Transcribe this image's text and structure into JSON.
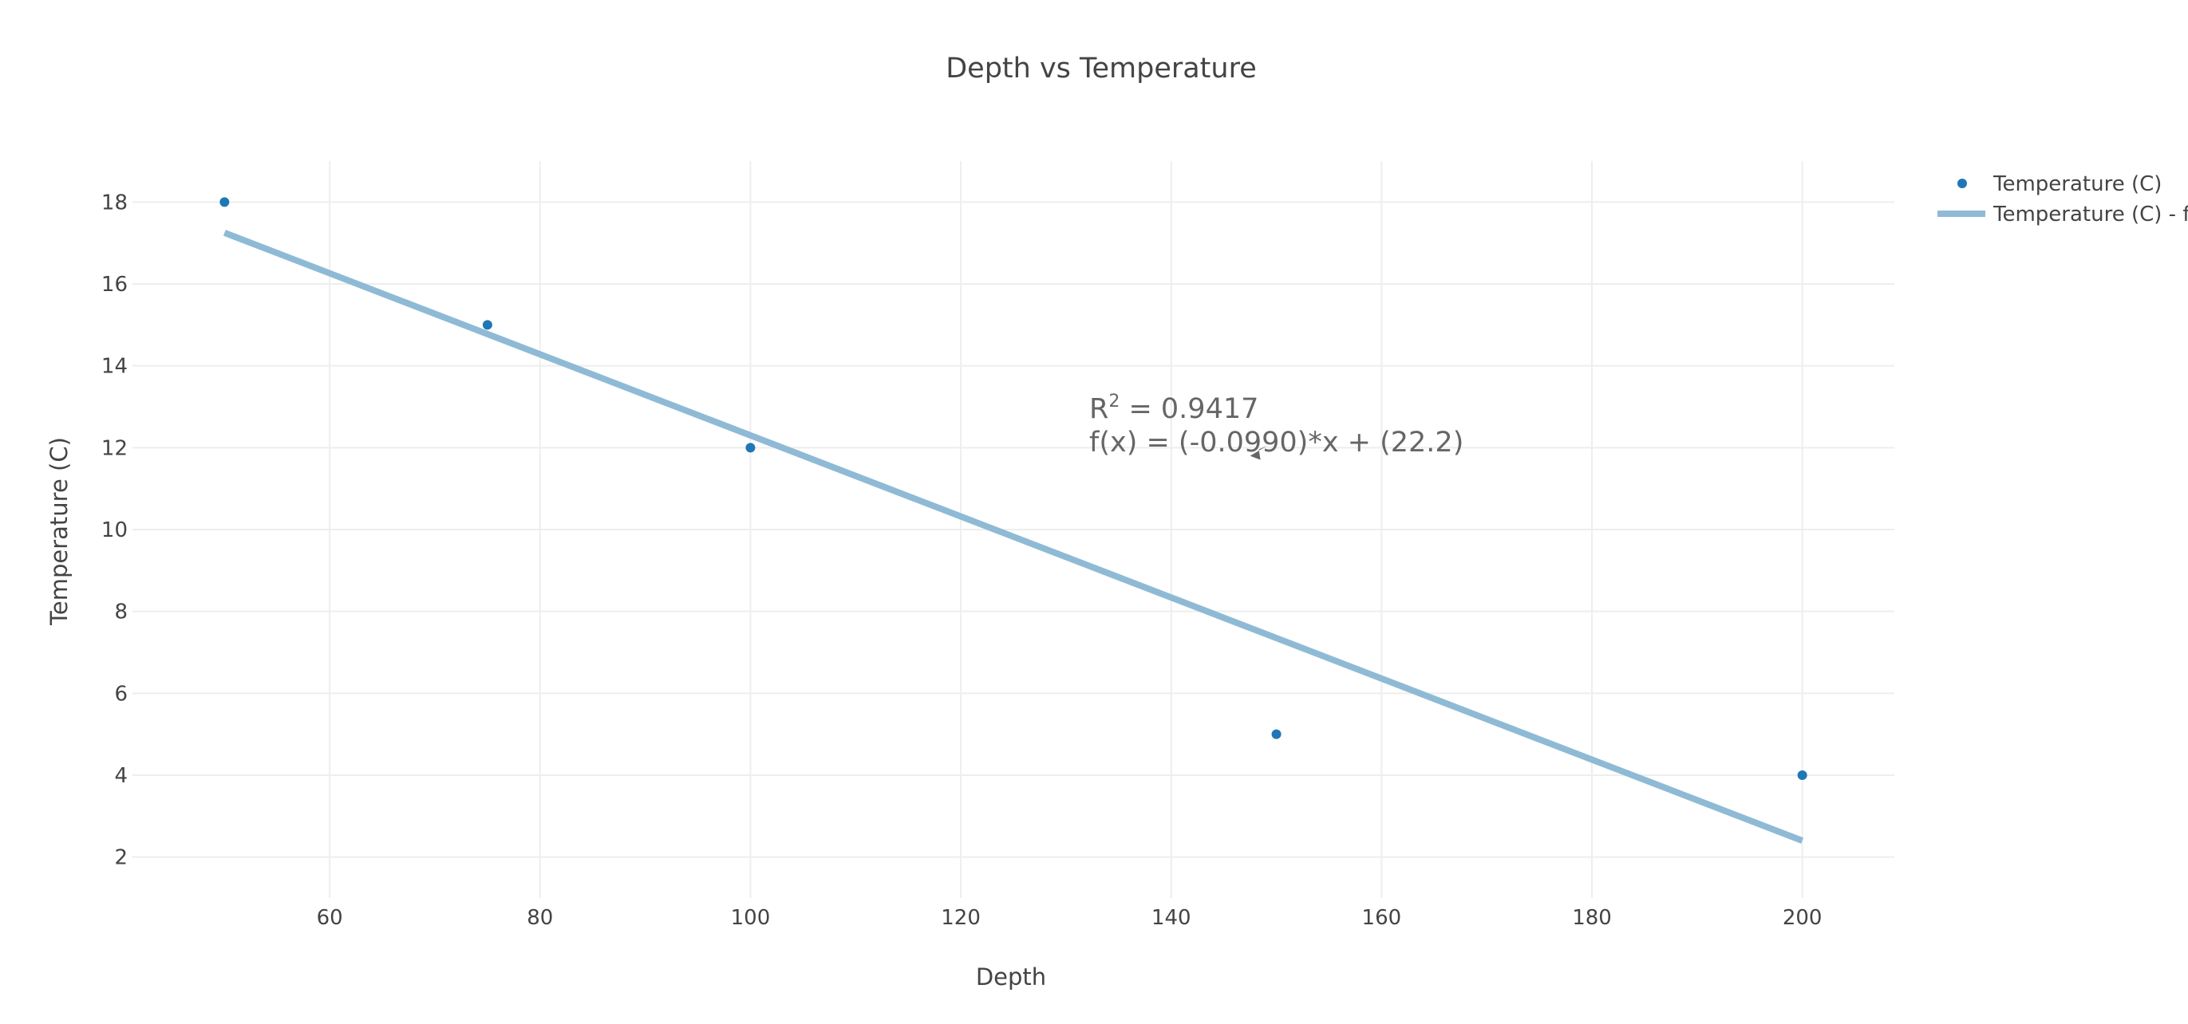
{
  "chart_data": {
    "type": "scatter",
    "title": "Depth vs Temperature",
    "xlabel": "Depth",
    "ylabel": "Temperature (C)",
    "xlim": [
      41.25,
      208.75
    ],
    "ylim": [
      1.0,
      19.0
    ],
    "x_ticks": [
      60,
      80,
      100,
      120,
      140,
      160,
      180,
      200
    ],
    "y_ticks": [
      2,
      4,
      6,
      8,
      10,
      12,
      14,
      16,
      18
    ],
    "grid": true,
    "legend_position": "top-right",
    "series": [
      {
        "name": "Temperature (C)",
        "mode": "markers",
        "color": "#1f77b4",
        "x": [
          50,
          75,
          100,
          150,
          200
        ],
        "y": [
          18,
          15,
          12,
          5,
          4
        ]
      },
      {
        "name": "Temperature (C) - fit",
        "legend_label": "Temperature (C) - f",
        "mode": "lines",
        "color": "#8fbad6",
        "x": [
          50,
          200
        ],
        "y": [
          17.25,
          2.4
        ]
      }
    ],
    "annotation": {
      "r2_prefix": "R",
      "r2_sup": "2",
      "r2_value": " = 0.9417",
      "equation": "f(x) = (-0.0990)*x + (22.2)",
      "arrow_x": 147.5,
      "arrow_y": 11.8
    }
  }
}
